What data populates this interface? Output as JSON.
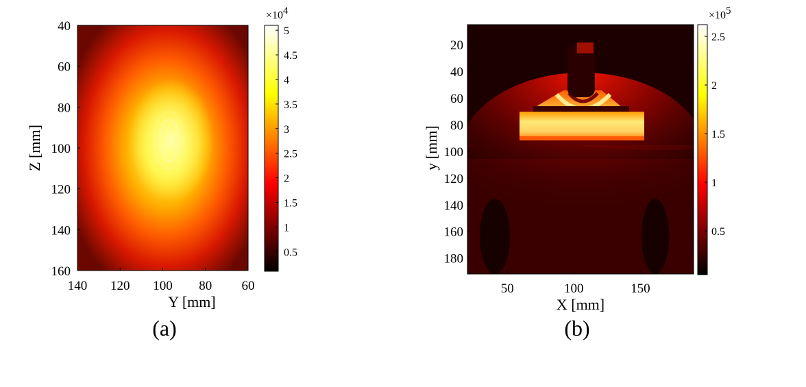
{
  "chart_data": [
    {
      "type": "heatmap",
      "panel_label": "(a)",
      "xlabel": "Y [mm]",
      "ylabel": "Z [mm]",
      "xlim": [
        140,
        60
      ],
      "ylim": [
        40,
        160
      ],
      "x_ticks": [
        "140",
        "120",
        "100",
        "80",
        "60"
      ],
      "y_ticks": [
        "40",
        "60",
        "80",
        "100",
        "120",
        "140",
        "160"
      ],
      "colorbar": {
        "exponent_label": "×10",
        "exponent_power": "4",
        "range": [
          1000,
          51000
        ],
        "ticks": [
          "5",
          "4.5",
          "4",
          "3.5",
          "3",
          "2.5",
          "2",
          "1.5",
          "1",
          "0.5"
        ],
        "colormap": "hot"
      },
      "field_description": {
        "peak_value": 51000,
        "peak_at": {
          "x": 97,
          "y": 97
        },
        "shape": "elliptical bright spot"
      }
    },
    {
      "type": "heatmap",
      "panel_label": "(b)",
      "xlabel": "X [mm]",
      "ylabel": "y [mm]",
      "xlim": [
        20,
        190
      ],
      "ylim": [
        5,
        192
      ],
      "x_ticks": [
        "50",
        "100",
        "150"
      ],
      "y_ticks": [
        "20",
        "40",
        "60",
        "80",
        "100",
        "120",
        "140",
        "160",
        "180"
      ],
      "colorbar": {
        "exponent_label": "×10",
        "exponent_power": "5",
        "range": [
          5000,
          262000
        ],
        "ticks": [
          "2.5",
          "2",
          "1.5",
          "1",
          "0.5"
        ],
        "colormap": "hot"
      },
      "field_description": {
        "bright_band_y": [
          72,
          88
        ],
        "peak_value": 262000
      }
    }
  ]
}
